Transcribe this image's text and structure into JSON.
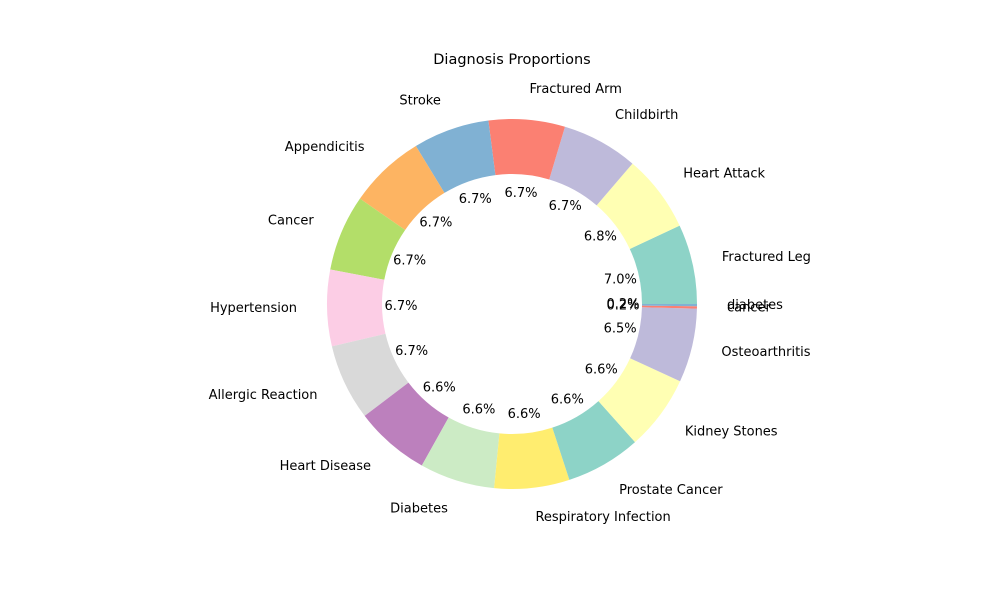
{
  "chart_data": {
    "type": "pie",
    "variant": "donut",
    "title": "Diagnosis Proportions",
    "start_angle_deg": 0,
    "direction": "counterclockwise",
    "slices": [
      {
        "label": "Fractured Leg",
        "value": 7.0,
        "pct_text": "7.0%",
        "color": "#8dd3c7"
      },
      {
        "label": "Heart Attack",
        "value": 6.8,
        "pct_text": "6.8%",
        "color": "#ffffb3"
      },
      {
        "label": "Childbirth",
        "value": 6.7,
        "pct_text": "6.7%",
        "color": "#bebada"
      },
      {
        "label": "Fractured Arm",
        "value": 6.7,
        "pct_text": "6.7%",
        "color": "#fb8072"
      },
      {
        "label": "Stroke",
        "value": 6.7,
        "pct_text": "6.7%",
        "color": "#80b1d3"
      },
      {
        "label": "Appendicitis",
        "value": 6.7,
        "pct_text": "6.7%",
        "color": "#fdb462"
      },
      {
        "label": "Cancer",
        "value": 6.7,
        "pct_text": "6.7%",
        "color": "#b3de69"
      },
      {
        "label": "Hypertension",
        "value": 6.7,
        "pct_text": "6.7%",
        "color": "#fccde5"
      },
      {
        "label": "Allergic Reaction",
        "value": 6.7,
        "pct_text": "6.7%",
        "color": "#d9d9d9"
      },
      {
        "label": "Heart Disease",
        "value": 6.6,
        "pct_text": "6.6%",
        "color": "#bc80bd"
      },
      {
        "label": "Diabetes",
        "value": 6.6,
        "pct_text": "6.6%",
        "color": "#ccebc5"
      },
      {
        "label": "Respiratory Infection",
        "value": 6.6,
        "pct_text": "6.6%",
        "color": "#ffed6f"
      },
      {
        "label": "Prostate Cancer",
        "value": 6.6,
        "pct_text": "6.6%",
        "color": "#8dd3c7"
      },
      {
        "label": "Kidney Stones",
        "value": 6.6,
        "pct_text": "6.6%",
        "color": "#ffffb3"
      },
      {
        "label": "Osteoarthritis",
        "value": 6.5,
        "pct_text": "6.5%",
        "color": "#bebada"
      },
      {
        "label": "cancer",
        "value": 0.2,
        "pct_text": "0.2%",
        "color": "#fb8072"
      },
      {
        "label": "diabetes",
        "value": 0.2,
        "pct_text": "0.2%",
        "color": "#80b1d3"
      }
    ]
  }
}
